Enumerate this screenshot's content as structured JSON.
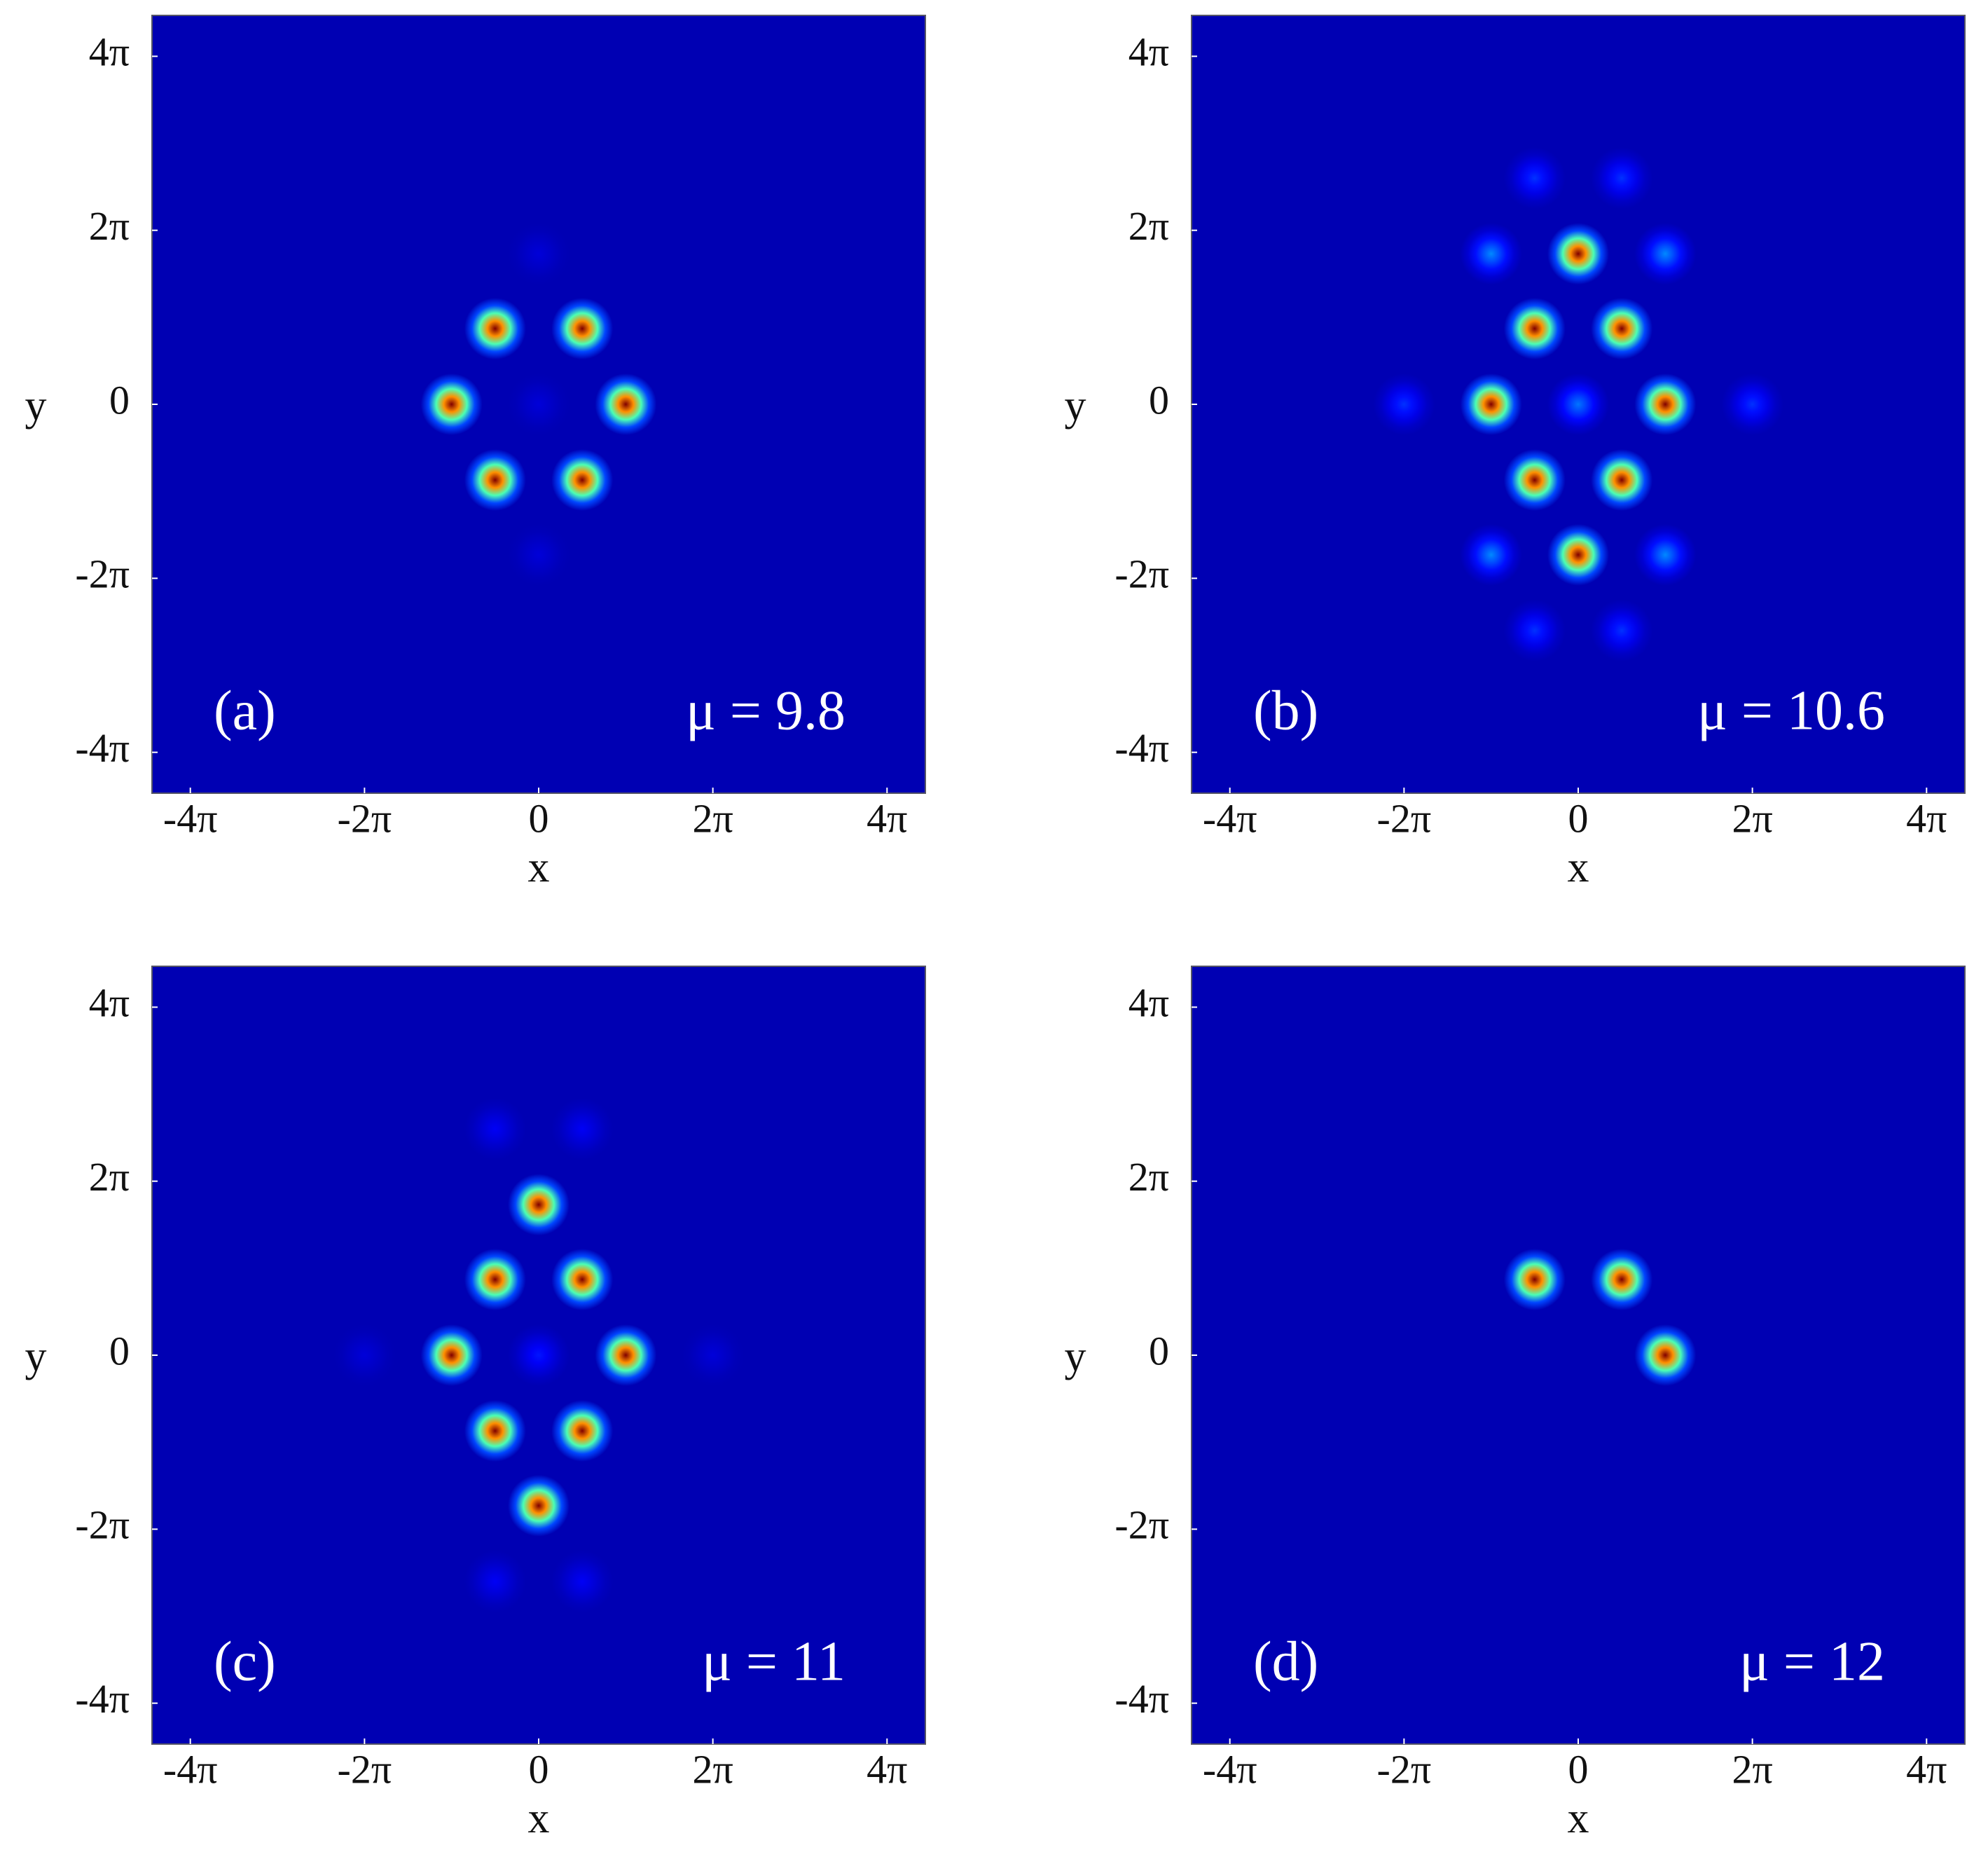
{
  "chart_data": [
    {
      "type": "scatter",
      "panel_label": "(a)",
      "annotation": "μ = 9.8",
      "x_label": "x",
      "y_label": "y",
      "xlim": [
        -4.44,
        4.44
      ],
      "ylim": [
        -4.47,
        4.47
      ],
      "xticks": [
        {
          "value": -4,
          "label": "-4π"
        },
        {
          "value": -2,
          "label": "-2π"
        },
        0,
        {
          "value": 2,
          "label": "2π"
        },
        {
          "value": 4,
          "label": "4π"
        }
      ],
      "yticks": [
        {
          "value": -4,
          "label": "-4π"
        },
        {
          "value": -2,
          "label": "-2π"
        },
        0,
        {
          "value": 2,
          "label": "2π"
        },
        {
          "value": 4,
          "label": "4π"
        }
      ],
      "colormap": "jet",
      "x": [
        -0.5,
        0.5,
        -1,
        1,
        -0.5,
        0.5,
        0,
        0,
        0
      ],
      "values": [
        0.87,
        0.87,
        0,
        0,
        -0.87,
        -0.87,
        0,
        1.73,
        -1.73
      ],
      "intensity": [
        1,
        1,
        1,
        1,
        1,
        1,
        0.04,
        0.04,
        0.04
      ]
    },
    {
      "type": "scatter",
      "panel_label": "(b)",
      "annotation": "μ = 10.6",
      "x_label": "x",
      "y_label": "y",
      "xlim": [
        -4.44,
        4.44
      ],
      "ylim": [
        -4.47,
        4.47
      ],
      "xticks": [
        {
          "value": -4,
          "label": "-4π"
        },
        {
          "value": -2,
          "label": "-2π"
        },
        0,
        {
          "value": 2,
          "label": "2π"
        },
        {
          "value": 4,
          "label": "4π"
        }
      ],
      "yticks": [
        {
          "value": -4,
          "label": "-4π"
        },
        {
          "value": -2,
          "label": "-2π"
        },
        0,
        {
          "value": 2,
          "label": "2π"
        },
        {
          "value": 4,
          "label": "4π"
        }
      ],
      "colormap": "jet",
      "x": [
        0,
        -0.5,
        0.5,
        -1,
        1,
        -0.5,
        0.5,
        0,
        0,
        -1,
        1,
        -1,
        1,
        -0.5,
        0.5,
        -0.5,
        0.5,
        -2,
        2
      ],
      "values": [
        1.73,
        0.87,
        0.87,
        0,
        0,
        -0.87,
        -0.87,
        -1.73,
        0,
        1.73,
        1.73,
        -1.73,
        -1.73,
        2.6,
        2.6,
        -2.6,
        -2.6,
        0,
        0
      ],
      "intensity": [
        1,
        1,
        1,
        1,
        1,
        1,
        1,
        1,
        0.2,
        0.22,
        0.22,
        0.22,
        0.22,
        0.13,
        0.13,
        0.13,
        0.13,
        0.13,
        0.13
      ]
    },
    {
      "type": "scatter",
      "panel_label": "(c)",
      "annotation": "μ = 11",
      "x_label": "x",
      "y_label": "y",
      "xlim": [
        -4.44,
        4.44
      ],
      "ylim": [
        -4.47,
        4.47
      ],
      "xticks": [
        {
          "value": -4,
          "label": "-4π"
        },
        {
          "value": -2,
          "label": "-2π"
        },
        0,
        {
          "value": 2,
          "label": "2π"
        },
        {
          "value": 4,
          "label": "4π"
        }
      ],
      "yticks": [
        {
          "value": -4,
          "label": "-4π"
        },
        {
          "value": -2,
          "label": "-2π"
        },
        0,
        {
          "value": 2,
          "label": "2π"
        },
        {
          "value": 4,
          "label": "4π"
        }
      ],
      "colormap": "jet",
      "x": [
        0,
        -0.5,
        0.5,
        -1,
        1,
        -0.5,
        0.5,
        0,
        0,
        -0.5,
        0.5,
        -0.5,
        0.5,
        -2,
        2
      ],
      "values": [
        1.73,
        0.87,
        0.87,
        0,
        0,
        -0.87,
        -0.87,
        -1.73,
        0,
        2.6,
        2.6,
        -2.6,
        -2.6,
        0,
        0
      ],
      "intensity": [
        1,
        1,
        1,
        1,
        1,
        1,
        1,
        1,
        0.1,
        0.07,
        0.07,
        0.07,
        0.07,
        0.04,
        0.04
      ]
    },
    {
      "type": "scatter",
      "panel_label": "(d)",
      "annotation": "μ = 12",
      "x_label": "x",
      "y_label": "y",
      "xlim": [
        -4.44,
        4.44
      ],
      "ylim": [
        -4.47,
        4.47
      ],
      "xticks": [
        {
          "value": -4,
          "label": "-4π"
        },
        {
          "value": -2,
          "label": "-2π"
        },
        0,
        {
          "value": 2,
          "label": "2π"
        },
        {
          "value": 4,
          "label": "4π"
        }
      ],
      "yticks": [
        {
          "value": -4,
          "label": "-4π"
        },
        {
          "value": -2,
          "label": "-2π"
        },
        0,
        {
          "value": 2,
          "label": "2π"
        },
        {
          "value": 4,
          "label": "4π"
        }
      ],
      "colormap": "jet",
      "x": [
        -0.5,
        0.5,
        1
      ],
      "values": [
        0.87,
        0.87,
        0
      ],
      "intensity": [
        1,
        1,
        1
      ]
    }
  ]
}
